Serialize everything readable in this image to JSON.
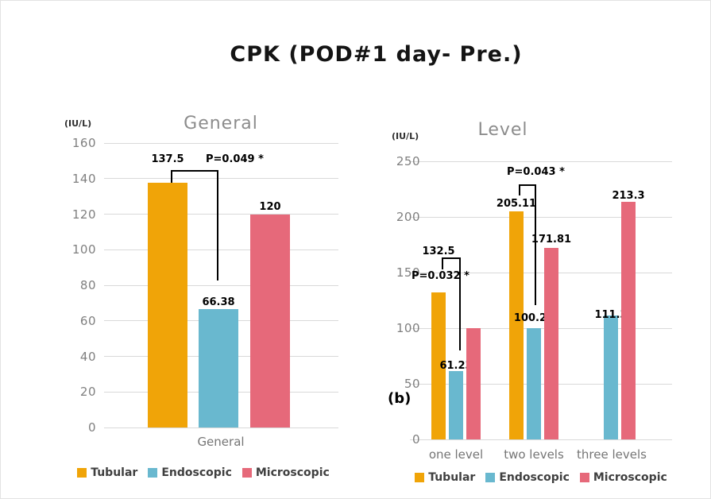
{
  "figure": {
    "title": "CPK (POD#1 day- Pre.)",
    "panel_label": "(b)"
  },
  "legend": {
    "items": [
      {
        "label": "Tubular",
        "color": "#F0A408"
      },
      {
        "label": "Endoscopic",
        "color": "#69B8CF"
      },
      {
        "label": "Microscopic",
        "color": "#E6697A"
      }
    ]
  },
  "colors": {
    "tubular": "#F0A408",
    "endoscopic": "#69B8CF",
    "microscopic": "#E6697A",
    "gridline": "#D9D9D9",
    "axis_text": "#7F7F7F",
    "chart_title": "#8C8C8C"
  },
  "chart_data": [
    {
      "id": "general",
      "type": "bar",
      "title": "General",
      "ylabel": "(IU/L)",
      "ylim": [
        0,
        160
      ],
      "yticks": [
        160,
        140,
        120,
        100,
        80,
        60,
        40,
        20,
        0
      ],
      "grid": true,
      "legend_position": "bottom",
      "categories": [
        "General"
      ],
      "series": [
        {
          "name": "Tubular",
          "color": "#F0A408",
          "values": [
            137.5
          ],
          "labels": [
            "137.5"
          ]
        },
        {
          "name": "Endoscopic",
          "color": "#69B8CF",
          "values": [
            66.38
          ],
          "labels": [
            "66.38"
          ]
        },
        {
          "name": "Microscopic",
          "color": "#E6697A",
          "values": [
            120
          ],
          "labels": [
            "120"
          ]
        }
      ],
      "annotations": [
        {
          "text": "P=0.049 *",
          "category": "General",
          "from_series": "Tubular",
          "to_series": "Endoscopic"
        }
      ]
    },
    {
      "id": "level",
      "type": "bar",
      "title": "Level",
      "ylabel": "(IU/L)",
      "ylim": [
        0,
        250
      ],
      "yticks": [
        250,
        200,
        150,
        100,
        50,
        0
      ],
      "grid": true,
      "legend_position": "bottom",
      "categories": [
        "one level",
        "two levels",
        "three levels"
      ],
      "series": [
        {
          "name": "Tubular",
          "color": "#F0A408",
          "values": [
            132.5,
            205.11,
            null
          ],
          "labels": [
            "132.5",
            "205.11",
            ""
          ]
        },
        {
          "name": "Endoscopic",
          "color": "#69B8CF",
          "values": [
            61.23,
            100.23,
            111.3
          ],
          "labels": [
            "61.23",
            "100.23",
            "111.3"
          ]
        },
        {
          "name": "Microscopic",
          "color": "#E6697A",
          "values": [
            100,
            171.81,
            213.3
          ],
          "labels": [
            "",
            "171.81",
            "213.3"
          ]
        }
      ],
      "annotations": [
        {
          "text": "P=0.032 *",
          "category": "one level",
          "from_series": "Tubular",
          "to_series": "Endoscopic"
        },
        {
          "text": "P=0.043 *",
          "category": "two levels",
          "from_series": "Tubular",
          "to_series": "Endoscopic"
        }
      ]
    }
  ]
}
